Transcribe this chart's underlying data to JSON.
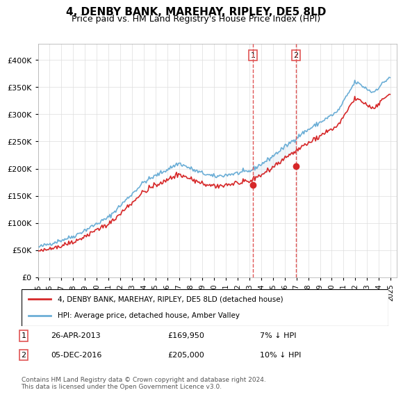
{
  "title": "4, DENBY BANK, MAREHAY, RIPLEY, DE5 8LD",
  "subtitle": "Price paid vs. HM Land Registry's House Price Index (HPI)",
  "ylim": [
    0,
    420000
  ],
  "yticks": [
    0,
    50000,
    100000,
    150000,
    200000,
    250000,
    300000,
    350000,
    400000
  ],
  "ytick_labels": [
    "£0",
    "£50K",
    "£100K",
    "£150K",
    "£200K",
    "£250K",
    "£300K",
    "£350K",
    "£400K"
  ],
  "hpi_color": "#6baed6",
  "price_color": "#d62728",
  "marker_color_1": "#d62728",
  "marker_color_2": "#d62728",
  "sale1_date": "26-APR-2013",
  "sale1_price": 169950,
  "sale1_label": "1",
  "sale1_hpi_diff": "7% ↓ HPI",
  "sale2_date": "05-DEC-2016",
  "sale2_price": 205000,
  "sale2_label": "2",
  "sale2_hpi_diff": "10% ↓ HPI",
  "legend_line1": "4, DENBY BANK, MAREHAY, RIPLEY, DE5 8LD (detached house)",
  "legend_line2": "HPI: Average price, detached house, Amber Valley",
  "footer": "Contains HM Land Registry data © Crown copyright and database right 2024.\nThis data is licensed under the Open Government Licence v3.0.",
  "shade_color": "#d6e4f0",
  "vline_color": "#e05555",
  "box_color": "#e05555",
  "start_year": 1995,
  "end_year": 2025
}
